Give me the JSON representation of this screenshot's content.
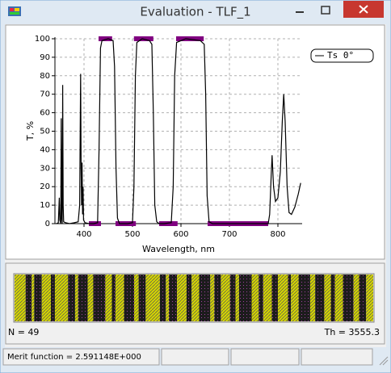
{
  "window": {
    "title": "Evaluation - TLF_1"
  },
  "chart_data": {
    "type": "line",
    "ylabel": "T, %",
    "xlabel": "Wavelength, nm",
    "xlim": [
      340,
      850
    ],
    "ylim": [
      0,
      100
    ],
    "xticks": [
      400,
      500,
      600,
      700,
      800
    ],
    "yticks": [
      0,
      10,
      20,
      30,
      40,
      50,
      60,
      70,
      80,
      90,
      100
    ],
    "grid": true,
    "legend": "top-right",
    "x": [
      343,
      347,
      349,
      350,
      352,
      353,
      354,
      355,
      356,
      357,
      358,
      362,
      370,
      380,
      388,
      391,
      393,
      394,
      395,
      396,
      397,
      398,
      399,
      402,
      410,
      420,
      428,
      431,
      434,
      437,
      450,
      460,
      463,
      466,
      469,
      473,
      480,
      490,
      500,
      503,
      506,
      509,
      520,
      535,
      540,
      543,
      546,
      550,
      555,
      565,
      580,
      584,
      587,
      591,
      610,
      640,
      648,
      651,
      654,
      658,
      665,
      700,
      750,
      780,
      783,
      786,
      788,
      791,
      795,
      800,
      805,
      809,
      812,
      815,
      819,
      823,
      828,
      835,
      842,
      847
    ],
    "series": [
      {
        "name": "Ts 0°",
        "color": "#000000",
        "values": [
          0,
          0.5,
          14,
          2,
          0,
          57,
          3,
          0,
          75,
          10,
          1,
          0.5,
          0,
          0.5,
          1,
          10,
          81,
          30,
          10,
          33,
          5,
          20,
          2,
          0.5,
          0,
          0,
          0.5,
          40,
          95,
          99,
          100,
          99,
          85,
          30,
          3,
          0,
          0,
          0,
          0.5,
          20,
          80,
          98,
          100,
          99,
          97,
          60,
          10,
          1,
          0,
          0,
          0.5,
          20,
          80,
          98,
          100,
          99,
          97,
          70,
          15,
          1,
          0,
          0,
          0,
          0,
          5,
          25,
          37,
          20,
          12,
          14,
          28,
          55,
          70,
          55,
          20,
          6,
          5,
          9,
          16,
          22
        ]
      }
    ],
    "targets": {
      "color": "#800080",
      "segments": [
        {
          "from": 430,
          "to": 458,
          "value": 100
        },
        {
          "from": 503,
          "to": 543,
          "value": 100
        },
        {
          "from": 590,
          "to": 647,
          "value": 100
        },
        {
          "from": 410,
          "to": 435,
          "value": 0
        },
        {
          "from": 465,
          "to": 507,
          "value": 0
        },
        {
          "from": 555,
          "to": 593,
          "value": 0
        },
        {
          "from": 655,
          "to": 780,
          "value": 0
        }
      ]
    }
  },
  "structure": {
    "colors": [
      "#d4d400",
      "#1c1c1c"
    ],
    "layers": [
      110,
      60,
      25,
      75,
      90,
      40,
      130,
      70,
      30,
      95,
      55,
      120,
      65,
      35,
      85,
      100,
      45,
      70,
      140,
      60,
      30,
      80,
      95,
      50,
      75,
      110,
      40,
      65,
      90,
      55,
      35,
      125,
      70,
      45,
      85,
      60,
      100,
      30,
      75,
      115,
      50,
      90,
      65,
      40,
      80,
      105,
      55,
      70,
      70
    ],
    "n_label": "N = 49",
    "th_label": "Th = 3555.3"
  },
  "status_bar": {
    "fields": [
      "Merit function = 2.591148E+000"
    ]
  }
}
